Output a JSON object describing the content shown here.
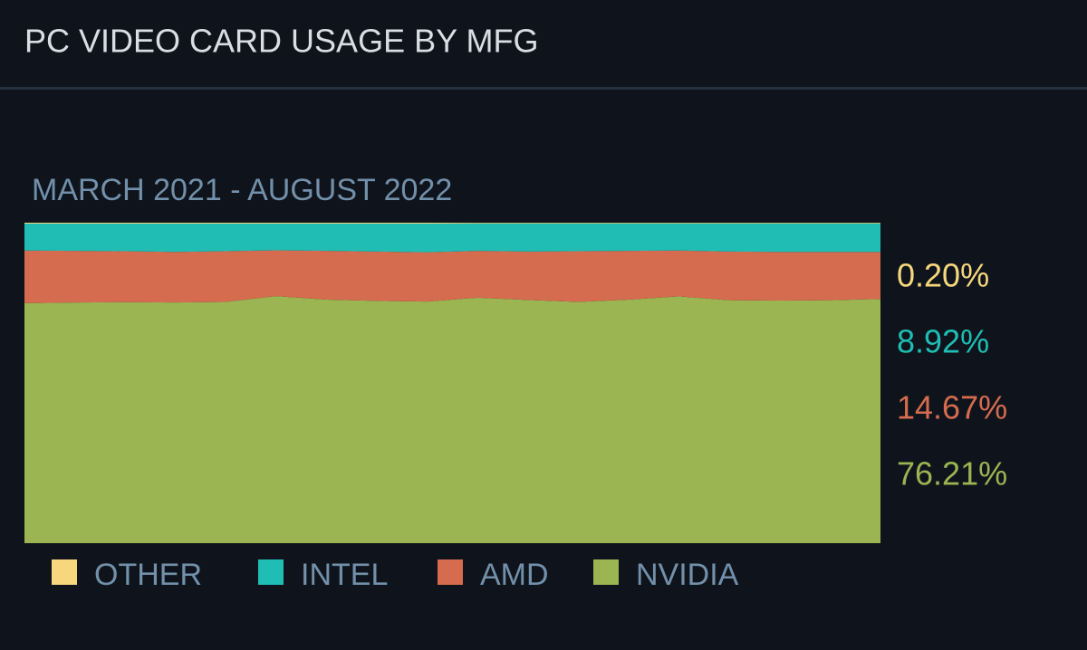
{
  "header": {
    "title": "PC VIDEO CARD USAGE BY MFG"
  },
  "chart_data": {
    "type": "stacked-area",
    "subtitle": "MARCH 2021 - AUGUST 2022",
    "ylim": [
      0,
      100
    ],
    "series": [
      {
        "name": "OTHER",
        "color": "#f6d77e",
        "values": [
          0.3,
          0.3,
          0.3,
          0.3,
          0.3,
          0.3,
          0.3,
          0.3,
          0.3,
          0.2,
          0.2,
          0.2,
          0.2,
          0.2,
          0.2,
          0.2,
          0.2,
          0.2
        ],
        "value_labels": [
          null,
          null,
          null,
          null,
          null,
          null,
          null,
          null,
          null,
          null,
          null,
          null,
          null,
          null,
          null,
          null,
          null,
          "0.20%"
        ]
      },
      {
        "name": "INTEL",
        "color": "#1fbdb4",
        "values": [
          8.4,
          8.5,
          8.6,
          8.8,
          8.6,
          8.3,
          8.5,
          8.7,
          8.9,
          8.6,
          8.8,
          8.7,
          8.6,
          8.5,
          8.8,
          8.9,
          8.9,
          8.92
        ],
        "value_labels": [
          null,
          null,
          null,
          null,
          null,
          null,
          null,
          null,
          null,
          null,
          null,
          null,
          null,
          null,
          null,
          null,
          null,
          "8.92%"
        ]
      },
      {
        "name": "AMD",
        "color": "#d56c4f",
        "values": [
          16.4,
          16.1,
          15.9,
          15.8,
          15.8,
          14.3,
          15.2,
          15.4,
          15.4,
          14.6,
          15.1,
          15.8,
          15.2,
          14.3,
          15.2,
          15.2,
          15.1,
          14.67
        ],
        "value_labels": [
          null,
          null,
          null,
          null,
          null,
          null,
          null,
          null,
          null,
          null,
          null,
          null,
          null,
          null,
          null,
          null,
          null,
          "14.67%"
        ]
      },
      {
        "name": "NVIDIA",
        "color": "#9ab552",
        "values": [
          74.9,
          75.1,
          75.2,
          75.1,
          75.3,
          77.1,
          76.0,
          75.6,
          75.4,
          76.6,
          75.9,
          75.3,
          76.0,
          77.0,
          75.8,
          75.7,
          75.8,
          76.21
        ],
        "value_labels": [
          null,
          null,
          null,
          null,
          null,
          null,
          null,
          null,
          null,
          null,
          null,
          null,
          null,
          null,
          null,
          null,
          null,
          "76.21%"
        ]
      }
    ]
  }
}
